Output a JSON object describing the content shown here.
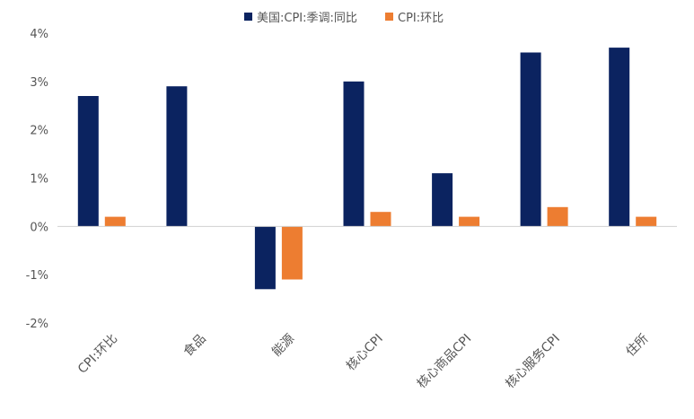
{
  "chart_data": {
    "type": "bar",
    "categories": [
      "CPI:环比",
      "食品",
      "能源",
      "核心CPI",
      "核心商品CPI",
      "核心服务CPI",
      "住所"
    ],
    "series": [
      {
        "name": "美国:CPI:季调:同比",
        "color": "#0b2360",
        "values": [
          2.7,
          2.9,
          -1.3,
          3.0,
          1.1,
          3.6,
          3.7
        ]
      },
      {
        "name": "CPI:环比",
        "color": "#ed7d31",
        "values": [
          0.2,
          null,
          -1.1,
          0.3,
          0.2,
          0.4,
          0.2
        ]
      }
    ],
    "ylim": [
      -2,
      4
    ],
    "yticks": [
      "-2%",
      "-1%",
      "0%",
      "1%",
      "2%",
      "3%",
      "4%"
    ],
    "legend_position": "top"
  }
}
